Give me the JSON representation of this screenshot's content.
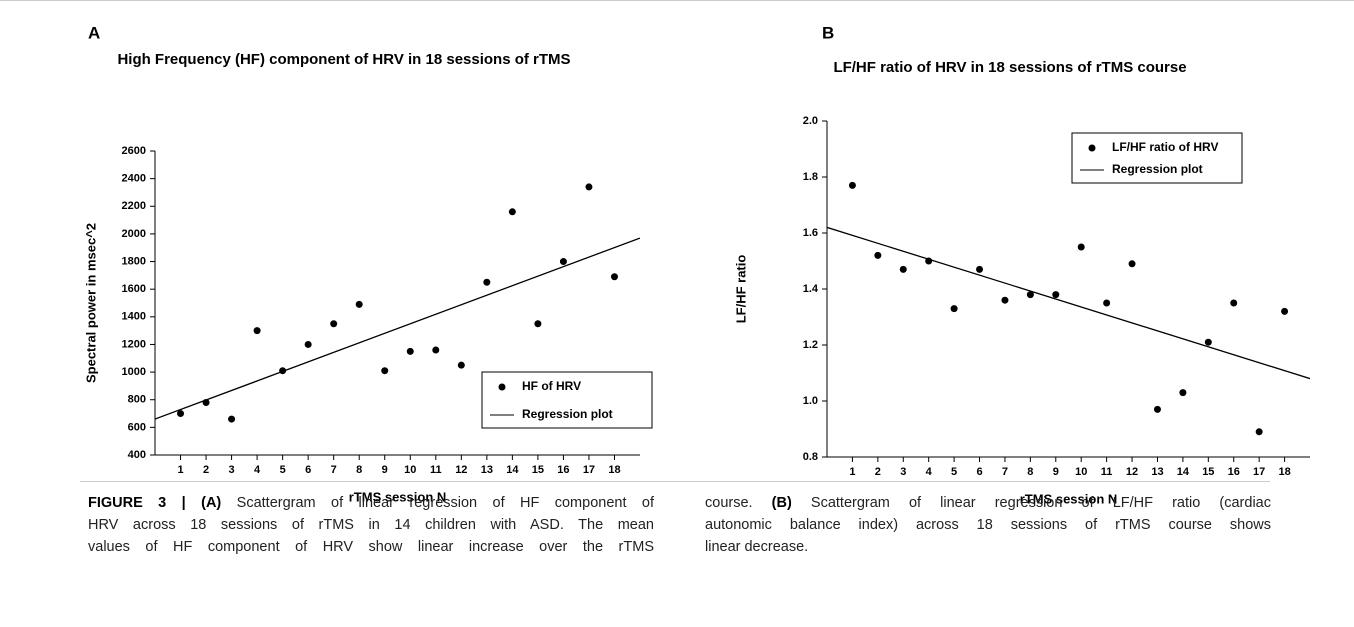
{
  "chart_data": [
    {
      "type": "scatter",
      "panel": "A",
      "title": "High Frequency (HF) component of HRV in 18 sessions of rTMS",
      "xlabel": "rTMS session N",
      "ylabel": "Spectral power in msec^2",
      "x": [
        1,
        2,
        3,
        4,
        5,
        6,
        7,
        8,
        9,
        10,
        11,
        12,
        13,
        14,
        15,
        16,
        17,
        18
      ],
      "series": [
        {
          "name": "HF of HRV",
          "color": "#000000",
          "values": [
            700,
            780,
            660,
            1300,
            1010,
            1200,
            1350,
            1490,
            1010,
            1150,
            1160,
            1050,
            1650,
            2160,
            1350,
            1800,
            2340,
            1690
          ]
        },
        {
          "name": "Regression plot",
          "color": "#000000",
          "x": [
            0,
            19
          ],
          "values": [
            660,
            1970
          ]
        }
      ],
      "xlim": [
        0,
        19
      ],
      "xticks": [
        1,
        2,
        3,
        4,
        5,
        6,
        7,
        8,
        9,
        10,
        11,
        12,
        13,
        14,
        15,
        16,
        17,
        18
      ],
      "ylim": [
        400,
        2600
      ],
      "yticks": [
        400,
        600,
        800,
        1000,
        1200,
        1400,
        1600,
        1800,
        2000,
        2200,
        2400,
        2600
      ],
      "legend": "lower right"
    },
    {
      "type": "scatter",
      "panel": "B",
      "title": "LF/HF ratio of HRV in 18 sessions of rTMS course",
      "xlabel": "rTMS session N",
      "ylabel": "LF/HF ratio",
      "x": [
        1,
        2,
        3,
        4,
        5,
        6,
        7,
        8,
        9,
        10,
        11,
        12,
        13,
        14,
        15,
        16,
        17,
        18
      ],
      "series": [
        {
          "name": "LF/HF ratio of HRV",
          "color": "#000000",
          "values": [
            1.77,
            1.52,
            1.47,
            1.5,
            1.33,
            1.47,
            1.36,
            1.38,
            1.38,
            1.55,
            1.35,
            1.49,
            0.97,
            1.03,
            1.21,
            1.35,
            0.89,
            1.32
          ]
        },
        {
          "name": "Regression plot",
          "color": "#000000",
          "x": [
            0,
            19
          ],
          "values": [
            1.62,
            1.08
          ]
        }
      ],
      "xlim": [
        0,
        19
      ],
      "xticks": [
        1,
        2,
        3,
        4,
        5,
        6,
        7,
        8,
        9,
        10,
        11,
        12,
        13,
        14,
        15,
        16,
        17,
        18
      ],
      "ylim": [
        0.8,
        2.0
      ],
      "yticks": [
        0.8,
        {
          "value": 1.0,
          "label": "1.0"
        },
        1.2,
        1.4,
        1.6,
        1.8,
        {
          "value": 2.0,
          "label": "2.0"
        }
      ],
      "legend": "upper right"
    }
  ],
  "caption": {
    "left": [
      [
        {
          "text": "FIGURE 3 | (A)",
          "bold": true
        },
        {
          "text": " Scattergram of linear regression of HF component of",
          "bold": false
        }
      ],
      [
        {
          "text": "HRV across 18 sessions of rTMS in 14 children with ASD. The mean",
          "bold": false
        }
      ],
      [
        {
          "text": "values of HF component of HRV show linear increase over the rTMS",
          "bold": false
        }
      ]
    ],
    "right": [
      [
        {
          "text": "course. ",
          "bold": false
        },
        {
          "text": "(B)",
          "bold": true
        },
        {
          "text": " Scattergram of linear regression of LF/HF ratio (cardiac",
          "bold": false
        }
      ],
      [
        {
          "text": "autonomic balance index) across 18 sessions of rTMS course shows",
          "bold": false
        }
      ],
      [
        {
          "text": "linear decrease.",
          "bold": false
        }
      ]
    ]
  }
}
